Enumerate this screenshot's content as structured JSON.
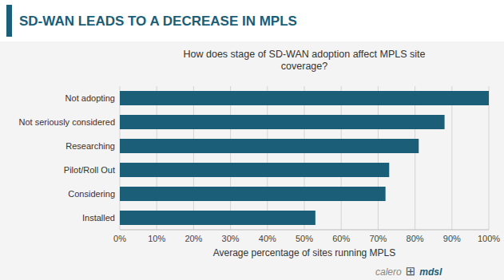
{
  "chart_data": {
    "type": "bar",
    "orientation": "horizontal",
    "title": "SD-WAN LEADS TO A DECREASE IN MPLS",
    "subtitle": "How does stage of SD-WAN adoption affect MPLS site\ncoverage?",
    "xlabel": "Average percentage of sites running MPLS",
    "categories": [
      "Not adopting",
      "Not seriously considered",
      "Researching",
      "Pilot/Roll Out",
      "Considering",
      "Installed"
    ],
    "values": [
      100,
      88,
      81,
      73,
      72,
      53
    ],
    "color": "#1a5e78",
    "xlim": [
      0,
      100
    ],
    "xticks": [
      {
        "value": 0,
        "label": "0%"
      },
      {
        "value": 10,
        "label": "10%"
      },
      {
        "value": 20,
        "label": "20%"
      },
      {
        "value": 30,
        "label": "30%"
      },
      {
        "value": 40,
        "label": "40%"
      },
      {
        "value": 50,
        "label": "50%"
      },
      {
        "value": 60,
        "label": "60%"
      },
      {
        "value": 70,
        "label": "70%"
      },
      {
        "value": 80,
        "label": "80%"
      },
      {
        "value": 90,
        "label": "90%"
      },
      {
        "value": 100,
        "label": "100%"
      }
    ],
    "grid": true,
    "annotations": [
      "calero",
      "⊞",
      "mdsl"
    ]
  }
}
